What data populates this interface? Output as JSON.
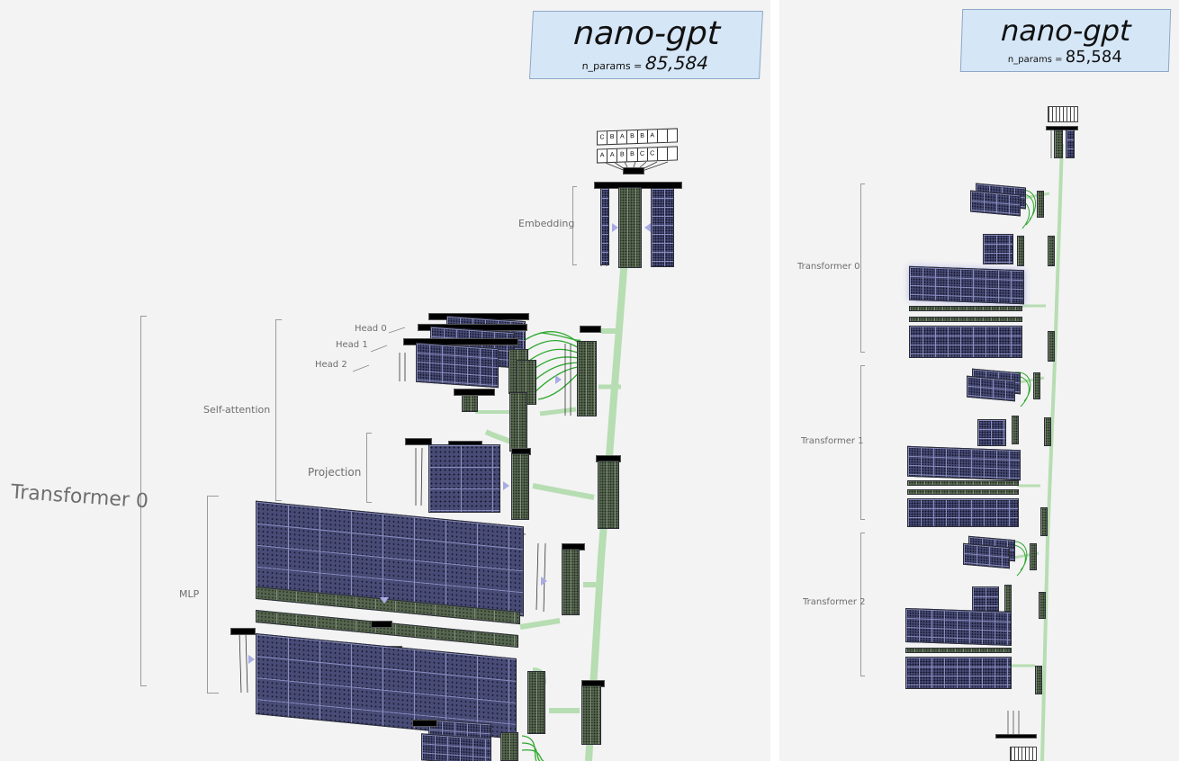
{
  "colors": {
    "title_card_bg": "#d5e6f7",
    "weight_block": "#474b75",
    "activation_block": "#56654f",
    "residual_stream": "#b7ddb2",
    "attention_lines": "#2fa82f",
    "flow_arrow": "#a9abe4",
    "panel_bg": "#f3f3f3"
  },
  "left_view": {
    "title": "nano-gpt",
    "params_label": "n_params = ",
    "params_value": "85,584",
    "labels": {
      "embedding": "Embedding",
      "transformer": "Transformer 0",
      "self_attention": "Self-attention",
      "projection": "Projection",
      "mlp": "MLP",
      "head0": "Head 0",
      "head1": "Head 1",
      "head2": "Head 2"
    },
    "input_tokens_top": [
      "C",
      "B",
      "A",
      "B",
      "B",
      "A"
    ],
    "input_tokens_bottom": [
      "A",
      "A",
      "B",
      "B",
      "C",
      "C"
    ]
  },
  "right_view": {
    "title": "nano-gpt",
    "params_label": "n_params = ",
    "params_value": "85,584",
    "labels": {
      "transformer0": "Transformer 0",
      "transformer1": "Transformer 1",
      "transformer2": "Transformer 2"
    }
  }
}
